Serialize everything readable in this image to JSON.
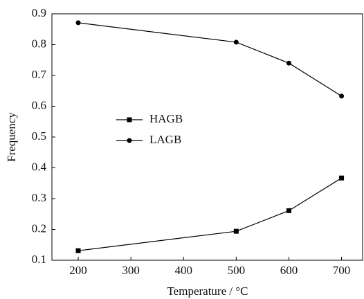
{
  "chart_data": {
    "type": "line",
    "x_label": "Temperature / °C",
    "y_label": "Frequency",
    "x": [
      200,
      500,
      600,
      700
    ],
    "series": [
      {
        "name": "HAGB",
        "color": "#000000",
        "marker": "square",
        "values": [
          0.131,
          0.194,
          0.261,
          0.367
        ]
      },
      {
        "name": "LAGB",
        "color": "#000000",
        "marker": "circle",
        "values": [
          0.871,
          0.808,
          0.74,
          0.633
        ]
      }
    ],
    "xlim": [
      150,
      740
    ],
    "xticks": [
      200,
      300,
      400,
      500,
      600,
      700
    ],
    "ylim": [
      0.1,
      0.9
    ],
    "yticks": [
      0.1,
      0.2,
      0.3,
      0.4,
      0.5,
      0.6,
      0.7,
      0.8,
      0.9
    ],
    "legend": "left"
  }
}
